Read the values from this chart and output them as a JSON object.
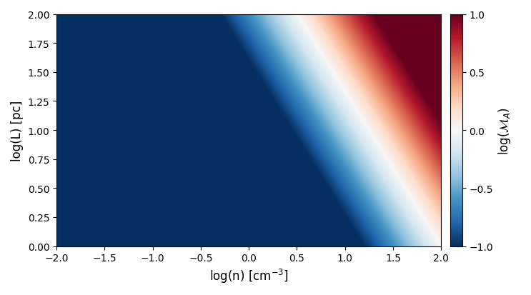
{
  "n_range": [
    -2.0,
    2.0
  ],
  "L_range": [
    0.0,
    2.0
  ],
  "n_points": 500,
  "L_points": 500,
  "formula_a_n": 0.5,
  "formula_b_L": 0.375,
  "formula_c": -1.0,
  "scale": 2.5,
  "vmin": -1.0,
  "vmax": 1.0,
  "cmap": "RdBu_r",
  "xlabel": "log(n) [cm$^{-3}$]",
  "ylabel": "log(L) [pc]",
  "cbar_label": "log($\\mathcal{M}_A$)",
  "xticks": [
    -2.0,
    -1.5,
    -1.0,
    -0.5,
    0.0,
    0.5,
    1.0,
    1.5,
    2.0
  ],
  "yticks": [
    0.0,
    0.25,
    0.5,
    0.75,
    1.0,
    1.25,
    1.5,
    1.75,
    2.0
  ],
  "cbar_ticks": [
    -1.0,
    -0.5,
    0.0,
    0.5,
    1.0
  ],
  "figsize": [
    7.43,
    4.14
  ],
  "dpi": 100
}
